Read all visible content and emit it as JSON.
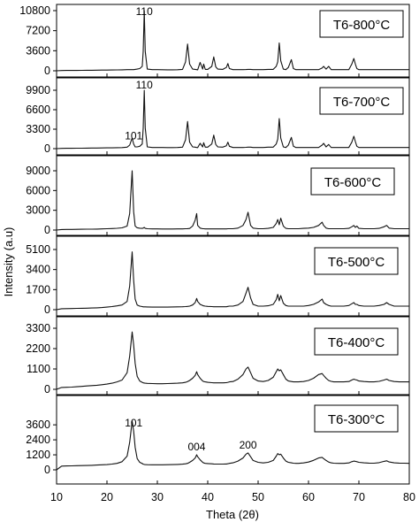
{
  "chart_data": {
    "type": "line",
    "xlabel": "Theta (2θ)",
    "ylabel": "Intensity (a.u)",
    "x_ticks": [
      "10",
      "20",
      "30",
      "40",
      "50",
      "60",
      "70",
      "80"
    ],
    "xlim": [
      10,
      80
    ],
    "x_samples": [
      10,
      11,
      12,
      13,
      14,
      15,
      16,
      17,
      18,
      19,
      20,
      21,
      22,
      23,
      24,
      24.5,
      25,
      25.3,
      25.6,
      26,
      26.5,
      27,
      27.2,
      27.4,
      27.6,
      28,
      29,
      30,
      31,
      32,
      33,
      34,
      35,
      35.6,
      36,
      36.4,
      37,
      37.5,
      37.8,
      38,
      38.5,
      39,
      39.2,
      39.5,
      40,
      40.8,
      41.2,
      41.6,
      42,
      43,
      43.7,
      44,
      44.3,
      45,
      46,
      47,
      47.6,
      48,
      48.5,
      49,
      50,
      51,
      52,
      53,
      53.6,
      53.9,
      54.2,
      54.5,
      55,
      55.5,
      56,
      56.6,
      57,
      57.5,
      58,
      59,
      60,
      61,
      62,
      62.7,
      63,
      63.5,
      64,
      64.5,
      65,
      66,
      67,
      68,
      68.6,
      69,
      69.3,
      69.6,
      70,
      71,
      72,
      73,
      74,
      75,
      75.5,
      76,
      77,
      78,
      79,
      80
    ],
    "panels": [
      {
        "label": "T6-800°C",
        "ylim": [
          0,
          10800
        ],
        "y_ticks": [
          "0",
          "3600",
          "7200",
          "10800"
        ],
        "annotations": [
          {
            "text": "110",
            "x": 27.4
          }
        ],
        "values": [
          0,
          50,
          60,
          60,
          70,
          80,
          90,
          100,
          110,
          120,
          130,
          140,
          160,
          180,
          200,
          200,
          200,
          200,
          250,
          300,
          400,
          800,
          3500,
          10800,
          3500,
          300,
          200,
          200,
          190,
          180,
          180,
          190,
          260,
          1600,
          4800,
          1200,
          300,
          250,
          200,
          180,
          1500,
          300,
          1200,
          250,
          250,
          800,
          2500,
          700,
          300,
          250,
          600,
          1300,
          400,
          200,
          200,
          200,
          220,
          250,
          250,
          200,
          200,
          200,
          250,
          250,
          800,
          1600,
          5000,
          1800,
          300,
          200,
          600,
          2000,
          400,
          200,
          200,
          200,
          200,
          200,
          200,
          500,
          800,
          300,
          800,
          200,
          200,
          200,
          200,
          200,
          1200,
          2200,
          1200,
          400,
          200,
          200,
          200,
          200,
          200,
          200,
          200,
          200,
          200,
          200,
          200,
          200
        ]
      },
      {
        "label": "T6-700°C",
        "ylim": [
          0,
          9900
        ],
        "y_ticks": [
          "0",
          "3300",
          "6600",
          "9900"
        ],
        "annotations": [
          {
            "text": "101",
            "x": 25.3
          },
          {
            "text": "110",
            "x": 27.4
          }
        ],
        "values": [
          0,
          50,
          60,
          60,
          70,
          80,
          90,
          100,
          110,
          120,
          130,
          140,
          160,
          180,
          250,
          600,
          1800,
          800,
          300,
          300,
          400,
          800,
          3500,
          9900,
          3500,
          300,
          200,
          200,
          190,
          180,
          180,
          190,
          260,
          1500,
          4600,
          1100,
          300,
          250,
          200,
          180,
          900,
          300,
          1000,
          250,
          250,
          800,
          2300,
          700,
          300,
          250,
          500,
          1100,
          400,
          200,
          200,
          200,
          220,
          250,
          250,
          200,
          200,
          200,
          250,
          250,
          800,
          1600,
          5100,
          1800,
          300,
          200,
          600,
          1900,
          400,
          200,
          200,
          200,
          200,
          200,
          200,
          600,
          900,
          300,
          700,
          200,
          200,
          200,
          200,
          200,
          1100,
          2100,
          1200,
          400,
          200,
          200,
          200,
          200,
          200,
          200,
          200,
          200,
          200,
          200,
          200,
          200
        ]
      },
      {
        "label": "T6-600°C",
        "ylim": [
          0,
          9000
        ],
        "y_ticks": [
          "0",
          "3000",
          "6000",
          "9000"
        ],
        "values": [
          0,
          80,
          90,
          100,
          110,
          120,
          130,
          140,
          150,
          170,
          200,
          230,
          270,
          330,
          600,
          2500,
          9000,
          2800,
          600,
          350,
          280,
          260,
          300,
          400,
          250,
          200,
          180,
          170,
          160,
          160,
          160,
          170,
          180,
          200,
          220,
          240,
          600,
          1500,
          2500,
          700,
          300,
          200,
          200,
          180,
          170,
          170,
          170,
          170,
          170,
          170,
          170,
          200,
          200,
          200,
          300,
          700,
          1600,
          2700,
          700,
          300,
          200,
          200,
          250,
          400,
          1000,
          1600,
          800,
          1800,
          600,
          250,
          200,
          200,
          200,
          200,
          200,
          250,
          300,
          400,
          700,
          1200,
          700,
          300,
          200,
          200,
          200,
          200,
          200,
          250,
          500,
          700,
          400,
          600,
          250,
          200,
          200,
          200,
          250,
          500,
          700,
          300,
          200,
          200,
          200,
          200
        ]
      },
      {
        "label": "T6-500°C",
        "ylim": [
          0,
          5100
        ],
        "y_ticks": [
          "0",
          "1700",
          "3400",
          "5100"
        ],
        "values": [
          0,
          80,
          90,
          100,
          110,
          120,
          130,
          140,
          160,
          180,
          220,
          260,
          320,
          400,
          700,
          2000,
          4900,
          2500,
          900,
          400,
          300,
          260,
          240,
          240,
          240,
          230,
          220,
          220,
          220,
          220,
          230,
          240,
          250,
          260,
          280,
          300,
          400,
          600,
          950,
          700,
          450,
          350,
          320,
          300,
          280,
          260,
          250,
          250,
          250,
          250,
          250,
          280,
          300,
          300,
          400,
          700,
          1400,
          1900,
          1000,
          450,
          300,
          300,
          330,
          450,
          850,
          1300,
          750,
          1200,
          550,
          350,
          300,
          300,
          300,
          300,
          300,
          300,
          350,
          450,
          650,
          900,
          600,
          450,
          350,
          300,
          300,
          300,
          300,
          350,
          500,
          600,
          450,
          450,
          350,
          300,
          300,
          300,
          350,
          450,
          600,
          450,
          300,
          300,
          300,
          300
        ]
      },
      {
        "label": "T6-400°C",
        "ylim": [
          0,
          3300
        ],
        "y_ticks": [
          "0",
          "1100",
          "2200",
          "3300"
        ],
        "values": [
          0,
          100,
          110,
          120,
          140,
          160,
          180,
          200,
          220,
          250,
          280,
          330,
          400,
          500,
          900,
          1800,
          3100,
          2400,
          1400,
          700,
          450,
          380,
          350,
          340,
          330,
          320,
          310,
          300,
          300,
          310,
          320,
          330,
          350,
          380,
          420,
          480,
          600,
          750,
          950,
          800,
          600,
          450,
          420,
          400,
          380,
          360,
          350,
          350,
          350,
          350,
          360,
          380,
          400,
          420,
          550,
          800,
          1100,
          1200,
          900,
          600,
          450,
          420,
          480,
          650,
          950,
          1100,
          1000,
          1050,
          800,
          550,
          450,
          420,
          400,
          400,
          400,
          420,
          480,
          600,
          800,
          850,
          750,
          600,
          480,
          430,
          400,
          400,
          400,
          420,
          500,
          550,
          520,
          500,
          450,
          420,
          400,
          400,
          430,
          500,
          550,
          480,
          420,
          400,
          400,
          400
        ]
      },
      {
        "label": "T6-300°C",
        "ylim": [
          0,
          4600
        ],
        "y_ticks": [
          "0",
          "1200",
          "2400",
          "3600"
        ],
        "annotations": [
          {
            "text": "101",
            "x": 25.3
          },
          {
            "text": "004",
            "x": 37.8
          },
          {
            "text": "200",
            "x": 48.0
          }
        ],
        "values": [
          0,
          300,
          310,
          320,
          330,
          340,
          350,
          360,
          380,
          400,
          420,
          460,
          520,
          650,
          1100,
          2200,
          3900,
          3100,
          1800,
          900,
          600,
          500,
          450,
          430,
          420,
          410,
          400,
          400,
          400,
          410,
          420,
          430,
          450,
          480,
          520,
          600,
          750,
          950,
          1200,
          1050,
          800,
          600,
          550,
          520,
          500,
          480,
          470,
          460,
          460,
          460,
          470,
          490,
          520,
          560,
          700,
          950,
          1250,
          1350,
          1050,
          750,
          600,
          550,
          600,
          750,
          1100,
          1300,
          1200,
          1250,
          950,
          700,
          600,
          560,
          530,
          520,
          520,
          550,
          620,
          760,
          950,
          1000,
          900,
          750,
          620,
          560,
          530,
          520,
          520,
          550,
          650,
          700,
          680,
          650,
          600,
          560,
          540,
          530,
          570,
          680,
          720,
          630,
          560,
          540,
          530,
          520
        ]
      }
    ]
  }
}
